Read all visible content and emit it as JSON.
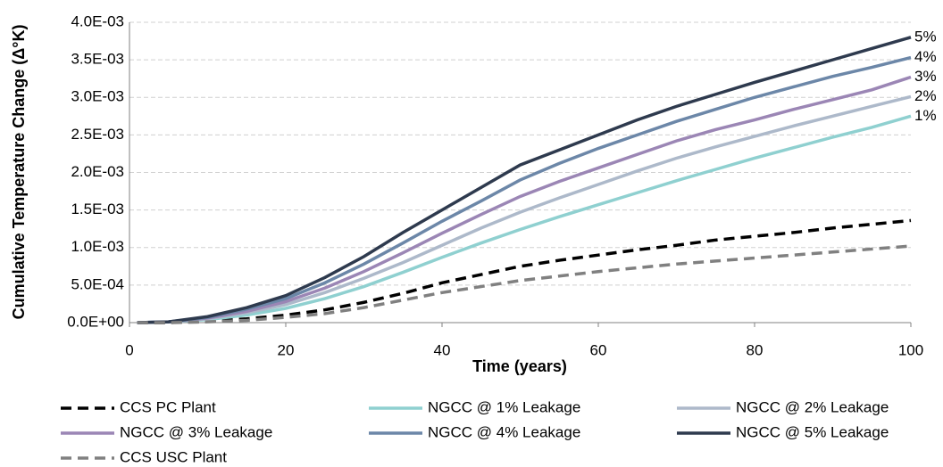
{
  "chart_data": {
    "type": "line",
    "x_label": "Time (years)",
    "y_label": "Cumulative Temperature Change (Δ°K)",
    "xlim": [
      0,
      100
    ],
    "xticks": [
      0,
      20,
      40,
      60,
      80,
      100
    ],
    "ylim": [
      0,
      0.004
    ],
    "yticks": [
      {
        "value": 0,
        "label": "0.0E+00"
      },
      {
        "value": 0.0005,
        "label": "5.0E-04"
      },
      {
        "value": 0.001,
        "label": "1.0E-03"
      },
      {
        "value": 0.0015,
        "label": "1.5E-03"
      },
      {
        "value": 0.002,
        "label": "2.0E-03"
      },
      {
        "value": 0.0025,
        "label": "2.5E-03"
      },
      {
        "value": 0.003,
        "label": "3.0E-03"
      },
      {
        "value": 0.0035,
        "label": "3.5E-03"
      },
      {
        "value": 0.004,
        "label": "4.0E-03"
      }
    ],
    "grid": true,
    "x": [
      1,
      5,
      10,
      15,
      20,
      25,
      30,
      35,
      40,
      45,
      50,
      55,
      60,
      65,
      70,
      75,
      80,
      85,
      90,
      95,
      100
    ],
    "series": [
      {
        "name": "CCS PC Plant",
        "color": "#000000",
        "line_style": "dashed",
        "values": [
          0,
          0,
          2e-05,
          5e-05,
          0.0001,
          0.00017,
          0.00027,
          0.00039,
          0.00053,
          0.00064,
          0.00075,
          0.00083,
          0.0009,
          0.00097,
          0.00103,
          0.0011,
          0.00115,
          0.0012,
          0.00126,
          0.00131,
          0.00136
        ]
      },
      {
        "name": "NGCC @ 1% Leakage",
        "color": "#8fd0d0",
        "line_style": "solid",
        "end_label": "1%",
        "values": [
          0,
          1e-05,
          4e-05,
          0.0001,
          0.00019,
          0.00032,
          0.00048,
          0.00067,
          0.00087,
          0.00106,
          0.00124,
          0.00141,
          0.00157,
          0.00173,
          0.00189,
          0.00204,
          0.00219,
          0.00233,
          0.00247,
          0.0026,
          0.00275
        ]
      },
      {
        "name": "NGCC @ 2% Leakage",
        "color": "#adb9ca",
        "line_style": "solid",
        "end_label": "2%",
        "values": [
          0,
          1e-05,
          5e-05,
          0.00013,
          0.00024,
          0.0004,
          0.00059,
          0.0008,
          0.00103,
          0.00126,
          0.00147,
          0.00166,
          0.00184,
          0.00202,
          0.00219,
          0.00234,
          0.00248,
          0.00262,
          0.00275,
          0.00288,
          0.00301
        ]
      },
      {
        "name": "NGCC @ 3% Leakage",
        "color": "#9b86b5",
        "line_style": "solid",
        "end_label": "3%",
        "values": [
          0,
          1e-05,
          6e-05,
          0.00015,
          0.00028,
          0.00046,
          0.00068,
          0.00093,
          0.00119,
          0.00144,
          0.00168,
          0.00188,
          0.00206,
          0.00224,
          0.00242,
          0.00257,
          0.0027,
          0.00284,
          0.00297,
          0.0031,
          0.00327
        ]
      },
      {
        "name": "NGCC @ 4% Leakage",
        "color": "#6c87a8",
        "line_style": "solid",
        "end_label": "4%",
        "values": [
          0,
          1e-05,
          7e-05,
          0.00018,
          0.00032,
          0.00053,
          0.00078,
          0.00106,
          0.00135,
          0.00162,
          0.0019,
          0.00212,
          0.00232,
          0.0025,
          0.00268,
          0.00284,
          0.003,
          0.00314,
          0.00328,
          0.0034,
          0.00353
        ]
      },
      {
        "name": "NGCC @ 5% Leakage",
        "color": "#2e3a4e",
        "line_style": "solid",
        "end_label": "5%",
        "values": [
          0,
          1e-05,
          8e-05,
          0.0002,
          0.00036,
          0.0006,
          0.00088,
          0.0012,
          0.0015,
          0.0018,
          0.0021,
          0.0023,
          0.0025,
          0.0027,
          0.00288,
          0.00304,
          0.0032,
          0.00335,
          0.0035,
          0.00365,
          0.0038
        ]
      },
      {
        "name": "CCS USC Plant",
        "color": "#808080",
        "line_style": "dashed",
        "values": [
          0,
          0,
          1e-05,
          3e-05,
          7e-05,
          0.00012,
          0.0002,
          0.0003,
          0.0004,
          0.00048,
          0.00056,
          0.00062,
          0.00068,
          0.00073,
          0.00078,
          0.00082,
          0.00086,
          0.0009,
          0.00094,
          0.00098,
          0.00102
        ]
      }
    ]
  }
}
